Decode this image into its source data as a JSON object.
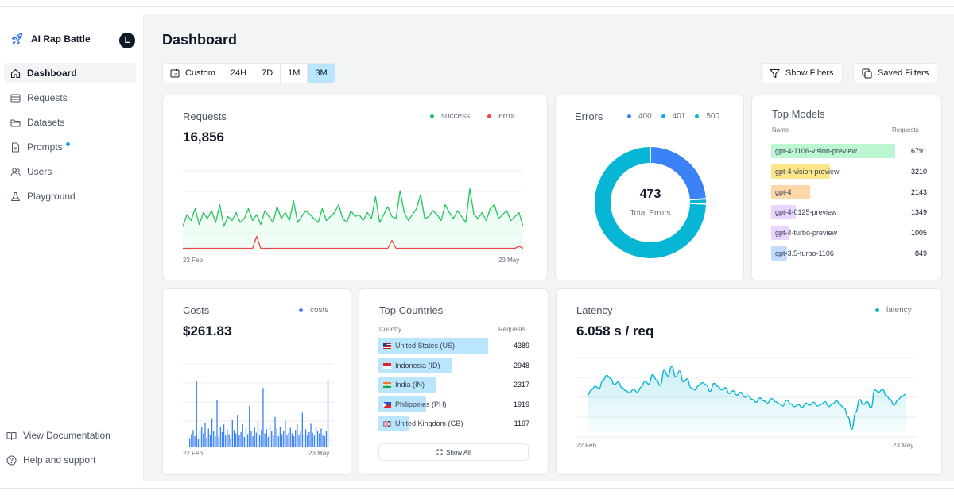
{
  "app": {
    "name": "AI Rap Battle",
    "avatar_initial": "L"
  },
  "sidebar": {
    "items": [
      {
        "label": "Dashboard",
        "icon": "home-icon",
        "active": true
      },
      {
        "label": "Requests",
        "icon": "table-icon"
      },
      {
        "label": "Datasets",
        "icon": "folder-icon"
      },
      {
        "label": "Prompts",
        "icon": "document-icon",
        "dot": true
      },
      {
        "label": "Users",
        "icon": "users-icon"
      },
      {
        "label": "Playground",
        "icon": "flask-icon"
      }
    ],
    "footer": {
      "docs": "View Documentation",
      "help": "Help and support"
    }
  },
  "header": {
    "title": "Dashboard"
  },
  "toolbar": {
    "ranges": [
      "Custom",
      "24H",
      "7D",
      "1M",
      "3M"
    ],
    "selected_range": "3M",
    "show_filters": "Show Filters",
    "saved_filters": "Saved Filters"
  },
  "requests": {
    "title": "Requests",
    "total": "16,856",
    "legend": {
      "success": "success",
      "error": "error"
    },
    "x_start": "22 Feb",
    "x_end": "23 May"
  },
  "errors": {
    "title": "Errors",
    "legend": [
      "400",
      "401",
      "500"
    ],
    "total": "473",
    "total_label": "Total Errors"
  },
  "top_models": {
    "title": "Top Models",
    "col_name": "Name",
    "col_requests": "Requests",
    "rows": [
      {
        "name": "gpt-4-1106-vision-preview",
        "requests": "6791",
        "value": 6791,
        "color": "#bbf7d0"
      },
      {
        "name": "gpt-4-vision-preview",
        "requests": "3210",
        "value": 3210,
        "color": "#fde68a"
      },
      {
        "name": "gpt-4",
        "requests": "2143",
        "value": 2143,
        "color": "#fed7aa"
      },
      {
        "name": "gpt-4-0125-preview",
        "requests": "1349",
        "value": 1349,
        "color": "#e9d5ff"
      },
      {
        "name": "gpt-4-turbo-preview",
        "requests": "1005",
        "value": 1005,
        "color": "#e9d5ff"
      },
      {
        "name": "gpt-3.5-turbo-1106",
        "requests": "849",
        "value": 849,
        "color": "#bfdbfe"
      }
    ]
  },
  "costs": {
    "title": "Costs",
    "total": "$261.83",
    "legend": "costs",
    "x_start": "22 Feb",
    "x_end": "23 May"
  },
  "top_countries": {
    "title": "Top Countries",
    "col_country": "Country",
    "col_requests": "Requests",
    "rows": [
      {
        "flag": "us-flag-icon",
        "name": "United States (US)",
        "requests": "4389",
        "value": 4389
      },
      {
        "flag": "id-flag-icon",
        "name": "Indonesia (ID)",
        "requests": "2948",
        "value": 2948
      },
      {
        "flag": "in-flag-icon",
        "name": "India (IN)",
        "requests": "2317",
        "value": 2317
      },
      {
        "flag": "ph-flag-icon",
        "name": "Philippines (PH)",
        "requests": "1919",
        "value": 1919
      },
      {
        "flag": "gb-flag-icon",
        "name": "United Kingdom (GB)",
        "requests": "1197",
        "value": 1197
      }
    ],
    "show_all": "Show All"
  },
  "latency": {
    "title": "Latency",
    "value": "6.058 s / req",
    "legend": "latency",
    "x_start": "22 Feb",
    "x_end": "23 May"
  },
  "chart_data": [
    {
      "type": "line",
      "series": [
        {
          "name": "success",
          "color": "#22c55e",
          "values": [
            120,
            180,
            150,
            210,
            130,
            190,
            160,
            200,
            140,
            230,
            120,
            170,
            150,
            190,
            140,
            160,
            210,
            150,
            180,
            130,
            200,
            170,
            140,
            220,
            160,
            190,
            150,
            250,
            140,
            170,
            200,
            180,
            160,
            140,
            210,
            150,
            170,
            190,
            230,
            160,
            140,
            200,
            170,
            180,
            150,
            190,
            160,
            270,
            140,
            180,
            220,
            170,
            160,
            300,
            190,
            150,
            180,
            210,
            280,
            160,
            170,
            200,
            180,
            150,
            230,
            190,
            160,
            200,
            170,
            140,
            310,
            180,
            160,
            190,
            150,
            210,
            230,
            160,
            180,
            200,
            150,
            170,
            190,
            120
          ]
        },
        {
          "name": "error",
          "color": "#ef4444",
          "values": [
            10,
            10,
            10,
            10,
            10,
            10,
            10,
            10,
            10,
            10,
            10,
            10,
            10,
            10,
            10,
            10,
            10,
            10,
            70,
            10,
            10,
            10,
            10,
            10,
            10,
            10,
            10,
            10,
            10,
            10,
            10,
            10,
            10,
            10,
            10,
            10,
            10,
            10,
            10,
            10,
            10,
            10,
            10,
            10,
            10,
            10,
            10,
            10,
            10,
            10,
            10,
            50,
            10,
            10,
            10,
            10,
            10,
            10,
            10,
            10,
            10,
            10,
            10,
            10,
            10,
            10,
            10,
            10,
            10,
            10,
            10,
            10,
            10,
            10,
            10,
            10,
            10,
            10,
            10,
            10,
            10,
            10,
            20,
            10
          ]
        }
      ],
      "ylim": [
        0,
        420
      ]
    },
    {
      "type": "pie",
      "labels": [
        "400",
        "401",
        "500"
      ],
      "values": [
        113,
        7,
        353
      ],
      "colors": [
        "#3b82f6",
        "#06b6d4",
        "#06b6d4"
      ]
    },
    {
      "type": "bar",
      "series": [
        {
          "name": "costs",
          "color": "#3b82f6",
          "values": [
            1.2,
            1.8,
            2.4,
            1.5,
            9.5,
            1.1,
            2.2,
            2.8,
            1.9,
            3.5,
            1.3,
            2.6,
            1.7,
            4.1,
            2.2,
            1.5,
            6.8,
            1.4,
            2.9,
            2.1,
            3.2,
            1.6,
            2.5,
            1.8,
            1.3,
            3.8,
            2.4,
            1.9,
            4.6,
            1.7,
            2.1,
            3.3,
            1.4,
            2.7,
            1.8,
            5.9,
            2.2,
            1.5,
            2.8,
            2.0,
            3.6,
            1.6,
            2.4,
            8.5,
            1.9,
            2.5,
            1.4,
            3.1,
            2.2,
            1.7,
            4.3,
            2.6,
            1.5,
            2.9,
            1.8,
            2.3,
            3.7,
            1.6,
            2.0,
            2.7,
            1.9,
            1.5,
            2.4,
            3.2,
            1.7,
            2.2,
            4.9,
            1.8,
            2.5,
            1.6,
            2.1,
            3.4,
            2.0,
            1.6,
            2.8,
            2.3,
            1.9,
            2.6,
            1.7,
            1.5,
            2.2,
            9.8
          ]
        }
      ],
      "ylim": [
        0,
        12
      ]
    },
    {
      "type": "area",
      "series": [
        {
          "name": "latency",
          "color": "#06b6d4",
          "values": [
            6.2,
            6.9,
            7.4,
            7.1,
            8.2,
            8.9,
            8.5,
            7.6,
            8.0,
            7.2,
            6.8,
            6.5,
            7.0,
            6.6,
            7.3,
            8.1,
            7.7,
            9.0,
            8.3,
            7.5,
            9.6,
            8.8,
            10.2,
            8.7,
            9.5,
            8.0,
            8.4,
            7.2,
            6.9,
            7.5,
            7.9,
            7.6,
            6.7,
            7.8,
            7.4,
            6.9,
            7.2,
            6.4,
            6.8,
            6.2,
            6.6,
            5.9,
            6.1,
            5.6,
            5.2,
            5.8,
            5.4,
            5.1,
            5.7,
            5.3,
            5.0,
            4.7,
            5.5,
            5.0,
            4.6,
            4.9,
            4.5,
            5.1,
            4.8,
            5.2,
            4.7,
            4.9,
            5.3,
            4.6,
            5.0,
            5.4,
            4.8,
            4.4,
            3.2,
            1.5,
            3.8,
            5.6,
            4.9,
            5.3,
            4.4,
            6.9,
            6.6,
            7.0,
            6.1,
            5.6,
            4.8,
            5.5,
            6.0,
            6.3
          ]
        }
      ],
      "ylim": [
        0,
        12
      ]
    }
  ]
}
